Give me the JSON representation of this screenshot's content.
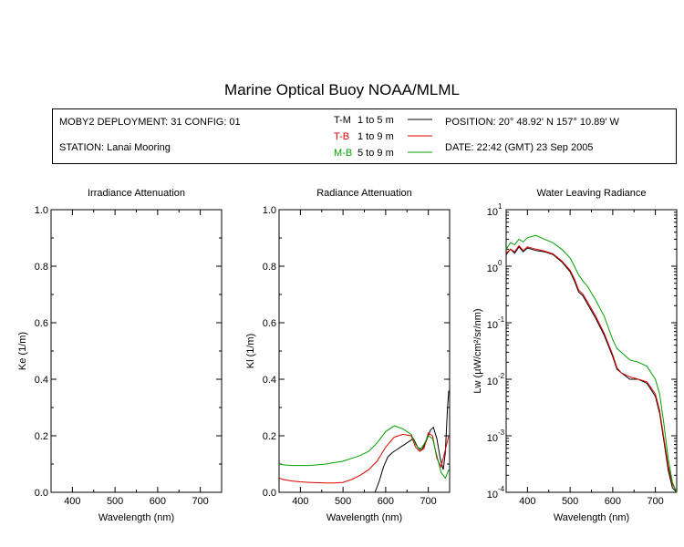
{
  "header": {
    "title": "Marine Optical Buoy NOAA/MLML",
    "deployment": "MOBY2 DEPLOYMENT: 31 CONFIG: 01",
    "station": "STATION: Lanai Mooring",
    "position": "POSITION: 20° 48.92' N   157° 10.89' W",
    "date": "DATE: 22:42 (GMT) 23 Sep 2005"
  },
  "colors": {
    "T-M": "#000000",
    "T-B": "#e00000",
    "M-B": "#00a000"
  },
  "chart_data": [
    {
      "type": "line",
      "title": "Irradiance Attenuation",
      "xlabel": "Wavelength (nm)",
      "ylabel": "Ke  (1/m)",
      "xlim": [
        350,
        750
      ],
      "ylim": [
        0,
        1.0
      ],
      "xticks": [
        400,
        500,
        600,
        700
      ],
      "yticks": [
        "0.0",
        "0.2",
        "0.4",
        "0.6",
        "0.8",
        "1.0"
      ],
      "series": []
    },
    {
      "type": "line",
      "title": "Radiance Attenuation",
      "xlabel": "Wavelength (nm)",
      "ylabel": "Kl  (1/m)",
      "xlim": [
        350,
        750
      ],
      "ylim": [
        0,
        1.0
      ],
      "xticks": [
        400,
        500,
        600,
        700
      ],
      "yticks": [
        "0.0",
        "0.2",
        "0.4",
        "0.6",
        "0.8",
        "1.0"
      ],
      "series": [
        {
          "name": "T-M",
          "label": "1 to 5  m",
          "x": [
            575,
            585,
            595,
            605,
            615,
            625,
            635,
            645,
            655,
            665,
            675,
            685,
            695,
            705,
            712,
            720,
            728,
            735,
            740,
            745,
            748
          ],
          "y": [
            0.0,
            0.04,
            0.09,
            0.125,
            0.14,
            0.15,
            0.16,
            0.17,
            0.18,
            0.19,
            0.16,
            0.15,
            0.18,
            0.22,
            0.23,
            0.19,
            0.12,
            0.08,
            0.14,
            0.3,
            0.36
          ]
        },
        {
          "name": "T-B",
          "label": "1 to 9  m",
          "x": [
            350,
            360,
            380,
            400,
            420,
            440,
            460,
            480,
            500,
            520,
            540,
            560,
            580,
            600,
            620,
            640,
            660,
            670,
            680,
            690,
            700,
            710,
            720,
            730,
            740,
            748
          ],
          "y": [
            0.05,
            0.045,
            0.04,
            0.037,
            0.035,
            0.034,
            0.033,
            0.033,
            0.035,
            0.045,
            0.06,
            0.08,
            0.11,
            0.16,
            0.195,
            0.205,
            0.2,
            0.16,
            0.145,
            0.155,
            0.21,
            0.2,
            0.12,
            0.09,
            0.15,
            0.2
          ]
        },
        {
          "name": "M-B",
          "label": "5 to 9  m",
          "x": [
            350,
            360,
            380,
            400,
            420,
            440,
            460,
            480,
            500,
            520,
            540,
            560,
            580,
            600,
            620,
            640,
            660,
            670,
            680,
            690,
            700,
            710,
            720,
            730,
            740,
            748
          ],
          "y": [
            0.1,
            0.097,
            0.095,
            0.095,
            0.095,
            0.097,
            0.1,
            0.105,
            0.11,
            0.12,
            0.13,
            0.145,
            0.175,
            0.215,
            0.235,
            0.225,
            0.205,
            0.17,
            0.15,
            0.17,
            0.2,
            0.19,
            0.13,
            0.07,
            0.05,
            0.08
          ]
        }
      ]
    },
    {
      "type": "line",
      "title": "Water Leaving Radiance",
      "xlabel": "Wavelength (nm)",
      "ylabel": "Lw  (µW/cm²/sr/nm)",
      "yscale": "log",
      "xlim": [
        350,
        750
      ],
      "ylim": [
        0.0001,
        10
      ],
      "xticks": [
        400,
        500,
        600,
        700
      ],
      "ytick_exponents": [
        1,
        0,
        -1,
        -2,
        -3,
        -4
      ],
      "series": [
        {
          "name": "T-M",
          "x": [
            350,
            360,
            370,
            380,
            390,
            400,
            420,
            440,
            460,
            480,
            500,
            510,
            520,
            530,
            540,
            560,
            580,
            600,
            610,
            620,
            640,
            660,
            680,
            700,
            710,
            720,
            730,
            740,
            750
          ],
          "y": [
            1.6,
            2.0,
            1.7,
            2.2,
            1.8,
            2.1,
            1.9,
            1.8,
            1.6,
            1.2,
            0.8,
            0.55,
            0.35,
            0.3,
            0.22,
            0.12,
            0.06,
            0.025,
            0.015,
            0.013,
            0.01,
            0.01,
            0.0085,
            0.005,
            0.0025,
            0.0008,
            0.00025,
            0.00012,
            0.0001
          ]
        },
        {
          "name": "T-B",
          "x": [
            350,
            360,
            370,
            380,
            390,
            400,
            420,
            440,
            460,
            480,
            500,
            510,
            520,
            530,
            540,
            560,
            580,
            600,
            610,
            620,
            640,
            660,
            680,
            700,
            710,
            720,
            730,
            740,
            750
          ],
          "y": [
            1.7,
            2.0,
            1.8,
            2.3,
            1.9,
            2.2,
            2.0,
            1.85,
            1.65,
            1.25,
            0.85,
            0.6,
            0.38,
            0.32,
            0.24,
            0.13,
            0.065,
            0.027,
            0.016,
            0.013,
            0.011,
            0.01,
            0.009,
            0.0055,
            0.0028,
            0.0009,
            0.0003,
            0.00014,
            0.0001
          ]
        },
        {
          "name": "M-B",
          "x": [
            350,
            360,
            370,
            380,
            390,
            400,
            420,
            440,
            460,
            480,
            500,
            510,
            520,
            530,
            540,
            560,
            580,
            600,
            610,
            620,
            640,
            660,
            680,
            700,
            710,
            720,
            730,
            740,
            750
          ],
          "y": [
            2.0,
            2.6,
            2.4,
            3.0,
            2.7,
            3.2,
            3.5,
            3.0,
            2.6,
            2.0,
            1.4,
            1.0,
            0.7,
            0.55,
            0.45,
            0.25,
            0.13,
            0.05,
            0.035,
            0.03,
            0.022,
            0.02,
            0.017,
            0.01,
            0.0055,
            0.0016,
            0.0004,
            0.00015,
            0.0001
          ]
        }
      ]
    }
  ]
}
